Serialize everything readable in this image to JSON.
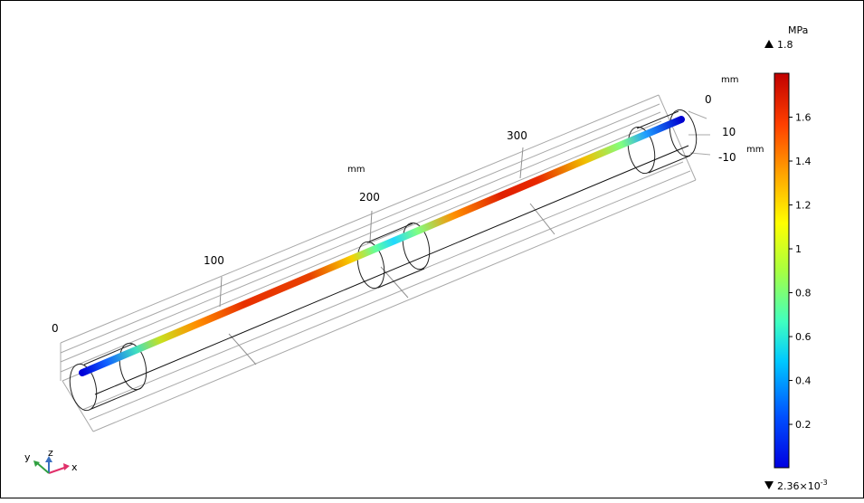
{
  "viewport": {
    "axis_unit": "mm",
    "x_ticks": [
      "0",
      "100",
      "200",
      "300"
    ],
    "side_unit_top": "mm",
    "side_ticks": [
      "0",
      "10",
      "-10"
    ],
    "side_unit_right": "mm"
  },
  "color_legend": {
    "unit": "MPa",
    "max_label": "1.8",
    "min_base": "2.36×10",
    "min_exp": "-3",
    "ticks": [
      "1.6",
      "1.4",
      "1.2",
      "1",
      "0.8",
      "0.6",
      "0.4",
      "0.2"
    ],
    "colormap": "rainbow",
    "colors": [
      "#0000ff",
      "#0080ff",
      "#00ffff",
      "#80ff80",
      "#ffff00",
      "#ff8000",
      "#ff0000",
      "#a00000"
    ],
    "range": [
      0.00236,
      1.8
    ]
  },
  "triad": {
    "x": "x",
    "y": "y",
    "z": "z"
  }
}
